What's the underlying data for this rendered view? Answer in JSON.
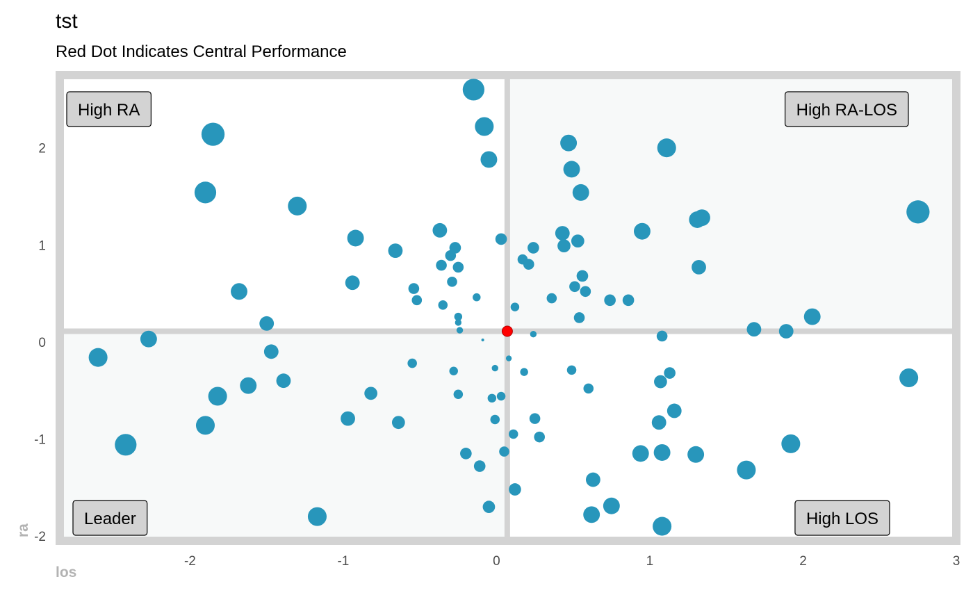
{
  "chart_data": {
    "type": "scatter",
    "title": "tst",
    "subtitle": "Red Dot Indicates Central Performance",
    "xlabel": "los",
    "ylabel": "ra",
    "xlim": [
      -2.85,
      3.0
    ],
    "ylim": [
      -2.05,
      2.75
    ],
    "xticks": [
      "-2",
      "-1",
      "0",
      "1",
      "2",
      "3"
    ],
    "xtick_values": [
      -2,
      -1,
      0,
      1,
      2,
      3
    ],
    "yticks": [
      "2",
      "1",
      "0",
      "-1",
      "-2"
    ],
    "ytick_values": [
      2,
      1,
      0,
      -1,
      -2
    ],
    "center": {
      "x": 0.07,
      "y": 0.11
    },
    "quadrants": [
      {
        "label": "High RA",
        "position": "top-left"
      },
      {
        "label": "High RA-LOS",
        "position": "top-right"
      },
      {
        "label": "Leader",
        "position": "bottom-left"
      },
      {
        "label": "High LOS",
        "position": "bottom-right"
      }
    ],
    "colors": {
      "point": "#2896bb",
      "center": "#ff0000",
      "border": "#d3d3d3",
      "quadrant_fill": "#f7f9f9"
    },
    "grid": false,
    "legend": "none",
    "points": [
      [
        -0.15,
        2.6,
        3
      ],
      [
        -0.08,
        2.22,
        2.6
      ],
      [
        -0.05,
        1.88,
        2.3
      ],
      [
        -1.85,
        2.14,
        3.2
      ],
      [
        -1.9,
        1.54,
        3
      ],
      [
        -1.3,
        1.4,
        2.6
      ],
      [
        -0.92,
        1.07,
        2.3
      ],
      [
        -0.66,
        0.94,
        2
      ],
      [
        -0.37,
        1.15,
        2
      ],
      [
        -0.27,
        0.97,
        1.6
      ],
      [
        -0.3,
        0.89,
        1.5
      ],
      [
        -0.36,
        0.79,
        1.5
      ],
      [
        -0.25,
        0.77,
        1.5
      ],
      [
        -0.29,
        0.62,
        1.4
      ],
      [
        -0.94,
        0.61,
        2
      ],
      [
        -1.68,
        0.52,
        2.3
      ],
      [
        -0.54,
        0.55,
        1.5
      ],
      [
        -0.52,
        0.43,
        1.4
      ],
      [
        -0.35,
        0.38,
        1.3
      ],
      [
        -0.13,
        0.46,
        1.1
      ],
      [
        -0.25,
        0.26,
        1.1
      ],
      [
        -0.25,
        0.2,
        0.9
      ],
      [
        -0.24,
        0.12,
        0.9
      ],
      [
        -0.09,
        0.02,
        0.4
      ],
      [
        -1.5,
        0.19,
        2
      ],
      [
        -2.27,
        0.03,
        2.3
      ],
      [
        -2.6,
        -0.16,
        2.6
      ],
      [
        -1.47,
        -0.1,
        2
      ],
      [
        -1.39,
        -0.4,
        2
      ],
      [
        -1.62,
        -0.45,
        2.3
      ],
      [
        -1.82,
        -0.56,
        2.6
      ],
      [
        -0.82,
        -0.53,
        1.8
      ],
      [
        -0.55,
        -0.22,
        1.3
      ],
      [
        -0.28,
        -0.3,
        1.2
      ],
      [
        -0.25,
        -0.54,
        1.3
      ],
      [
        -0.03,
        -0.58,
        1.2
      ],
      [
        0.03,
        -0.56,
        1.2
      ],
      [
        -0.01,
        -0.27,
        0.9
      ],
      [
        0.08,
        -0.17,
        0.8
      ],
      [
        0.18,
        -0.31,
        1.1
      ],
      [
        0.49,
        -0.29,
        1.3
      ],
      [
        0.6,
        -0.48,
        1.4
      ],
      [
        -0.97,
        -0.79,
        2
      ],
      [
        -1.9,
        -0.86,
        2.6
      ],
      [
        -2.42,
        -1.06,
        3
      ],
      [
        -0.64,
        -0.83,
        1.8
      ],
      [
        -0.01,
        -0.8,
        1.3
      ],
      [
        0.25,
        -0.79,
        1.5
      ],
      [
        0.11,
        -0.95,
        1.3
      ],
      [
        0.28,
        -0.98,
        1.5
      ],
      [
        0.05,
        -1.13,
        1.4
      ],
      [
        -0.2,
        -1.15,
        1.6
      ],
      [
        -0.11,
        -1.28,
        1.6
      ],
      [
        0.12,
        -1.52,
        1.7
      ],
      [
        -0.05,
        -1.7,
        1.7
      ],
      [
        -1.17,
        -1.8,
        2.6
      ],
      [
        0.63,
        -1.42,
        2
      ],
      [
        0.62,
        -1.78,
        2.3
      ],
      [
        0.75,
        -1.69,
        2.3
      ],
      [
        1.08,
        -1.9,
        2.6
      ],
      [
        0.94,
        -1.15,
        2.3
      ],
      [
        1.08,
        -1.14,
        2.3
      ],
      [
        1.3,
        -1.16,
        2.3
      ],
      [
        1.06,
        -0.83,
        2
      ],
      [
        1.16,
        -0.71,
        2
      ],
      [
        1.07,
        -0.41,
        1.8
      ],
      [
        1.13,
        -0.32,
        1.6
      ],
      [
        1.08,
        0.06,
        1.5
      ],
      [
        1.63,
        -1.32,
        2.6
      ],
      [
        1.92,
        -1.05,
        2.6
      ],
      [
        2.69,
        -0.37,
        2.6
      ],
      [
        1.68,
        0.13,
        2
      ],
      [
        1.89,
        0.11,
        2
      ],
      [
        2.06,
        0.26,
        2.3
      ],
      [
        2.75,
        1.34,
        3.2
      ],
      [
        1.31,
        1.26,
        2.3
      ],
      [
        1.34,
        1.28,
        2.3
      ],
      [
        1.32,
        0.77,
        2
      ],
      [
        0.95,
        1.14,
        2.3
      ],
      [
        1.11,
        2.0,
        2.6
      ],
      [
        0.47,
        2.05,
        2.3
      ],
      [
        0.49,
        1.78,
        2.3
      ],
      [
        0.55,
        1.54,
        2.3
      ],
      [
        0.43,
        1.12,
        2
      ],
      [
        0.44,
        0.99,
        1.8
      ],
      [
        0.53,
        1.04,
        1.8
      ],
      [
        0.56,
        0.68,
        1.6
      ],
      [
        0.51,
        0.57,
        1.5
      ],
      [
        0.58,
        0.52,
        1.5
      ],
      [
        0.54,
        0.25,
        1.5
      ],
      [
        0.74,
        0.43,
        1.6
      ],
      [
        0.86,
        0.43,
        1.6
      ],
      [
        0.36,
        0.45,
        1.4
      ],
      [
        0.12,
        0.36,
        1.2
      ],
      [
        0.24,
        0.97,
        1.6
      ],
      [
        0.03,
        1.06,
        1.6
      ],
      [
        0.17,
        0.85,
        1.4
      ],
      [
        0.21,
        0.8,
        1.5
      ],
      [
        0.24,
        0.08,
        0.9
      ]
    ]
  }
}
